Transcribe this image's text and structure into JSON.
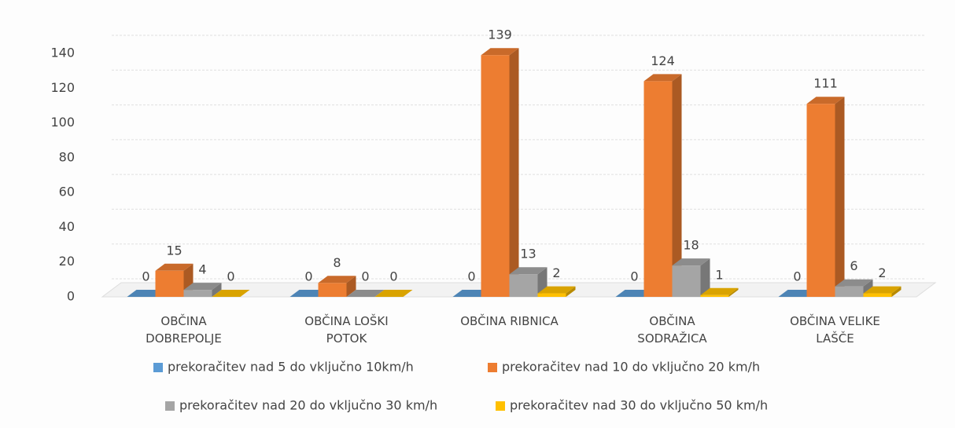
{
  "chart_data": {
    "type": "bar3d",
    "categories": [
      "OBČINA DOBREPOLJE",
      "OBČINA LOŠKI POTOK",
      "OBČINA RIBNICA",
      "OBČINA SODRAŽICA",
      "OBČINA VELIKE LAŠČE"
    ],
    "series": [
      {
        "name": "prekoračitev nad 5 do vključno 10km/h",
        "color": "#5b9bd5",
        "values": [
          0,
          0,
          0,
          0,
          0
        ]
      },
      {
        "name": "prekoračitev nad 10 do vključno 20 km/h",
        "color": "#ed7d31",
        "values": [
          15,
          8,
          139,
          124,
          111
        ]
      },
      {
        "name": "prekoračitev nad 20 do vključno 30 km/h",
        "color": "#a5a5a5",
        "values": [
          4,
          0,
          13,
          18,
          6
        ]
      },
      {
        "name": "prekoračitev nad 30 do vključno 50 km/h",
        "color": "#ffc000",
        "values": [
          0,
          0,
          2,
          1,
          2
        ]
      }
    ],
    "ylim": [
      0,
      140
    ],
    "yticks": [
      0,
      20,
      40,
      60,
      80,
      100,
      120,
      140
    ],
    "grid": true
  }
}
